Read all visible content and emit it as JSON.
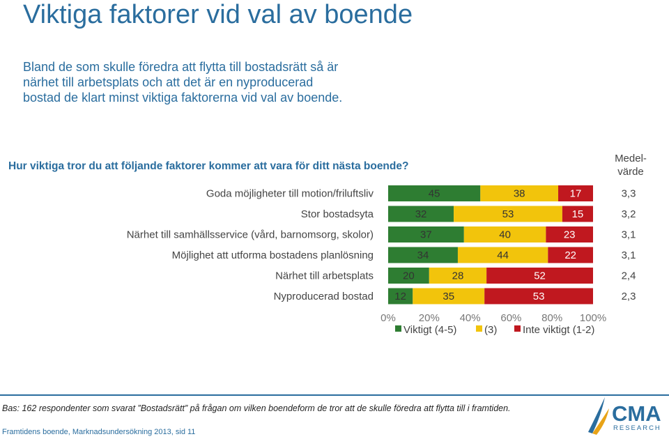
{
  "title": "Viktiga faktorer vid val av boende",
  "intro": "Bland de som skulle föredra att flytta till bostadsrätt så är närhet till arbetsplats och att det är en nyproducerad bostad de klart minst viktiga faktorerna vid val av boende.",
  "question": "Hur viktiga tror du att följande faktorer kommer att vara för ditt nästa boende?",
  "mean_header": "Medel-\nvärde",
  "colors": {
    "important": "#2e7d32",
    "neutral": "#f2c40c",
    "unimportant": "#c0181f"
  },
  "chart_data": {
    "type": "bar",
    "orientation": "horizontal",
    "stacked": true,
    "categories": [
      "Goda möjligheter till motion/friluftsliv",
      "Stor bostadsyta",
      "Närhet till samhällsservice (vård, barnomsorg, skolor)",
      "Möjlighet att utforma bostadens planlösning",
      "Närhet till arbetsplats",
      "Nyproducerad bostad"
    ],
    "series": [
      {
        "name": "Viktigt (4-5)",
        "values": [
          45,
          32,
          37,
          34,
          20,
          12
        ]
      },
      {
        "name": "(3)",
        "values": [
          38,
          53,
          40,
          44,
          28,
          35
        ]
      },
      {
        "name": "Inte viktigt (1-2)",
        "values": [
          17,
          15,
          23,
          22,
          52,
          53
        ]
      }
    ],
    "means": [
      "3,3",
      "3,2",
      "3,1",
      "3,1",
      "2,4",
      "2,3"
    ],
    "xlim": [
      0,
      100
    ],
    "xticks": [
      "0%",
      "20%",
      "40%",
      "60%",
      "80%",
      "100%"
    ],
    "legend_position": "bottom"
  },
  "footer": {
    "base": "Bas: 162 respondenter som svarat ”Bostadsrätt” på frågan om vilken boendeform de tror att de skulle föredra att flytta till i framtiden.",
    "source": "Framtidens boende, Marknadsundersökning 2013, sid 11"
  },
  "logo": {
    "name": "CMA",
    "sub": "RESEARCH"
  }
}
